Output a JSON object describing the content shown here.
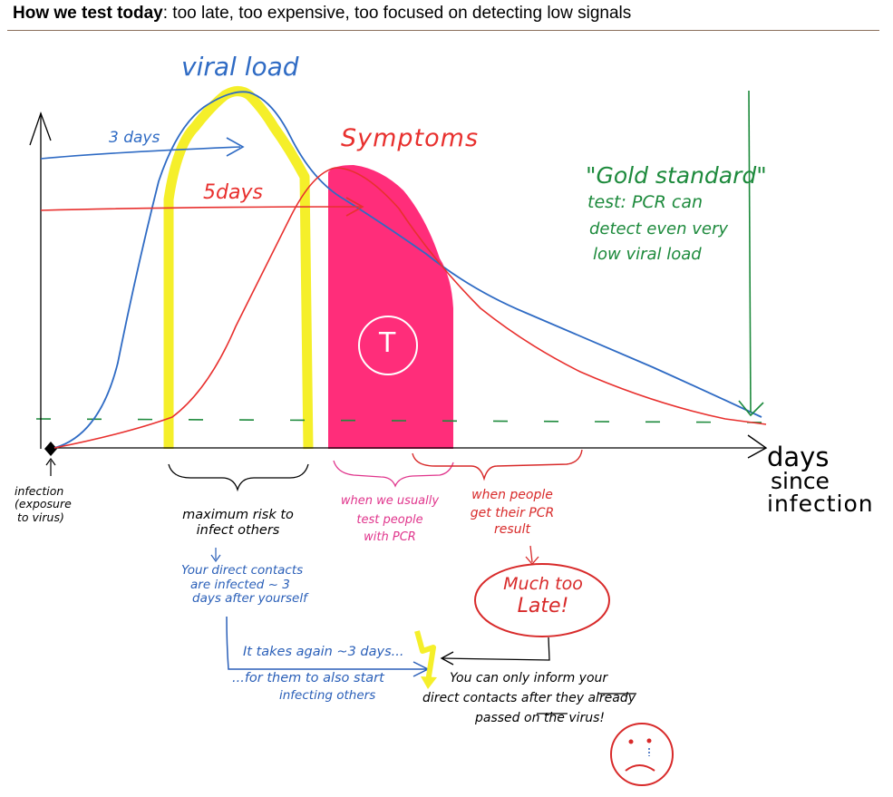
{
  "header": {
    "title_bold": "How we test today",
    "title_rest": ": too late, too expensive, too focused on detecting low signals"
  },
  "colors": {
    "viral_load": "#2f6bc4",
    "symptoms": "#e8302e",
    "infectious_band": "#f5ef2a",
    "testing_window": "#ff2d7a",
    "gold_standard": "#1d8a3c",
    "annotation_blue": "#2a5fb8",
    "annotation_red": "#d82a2a",
    "annotation_pink": "#e0358c",
    "axis": "#000000"
  },
  "labels": {
    "viral_load": "viral load",
    "three_days": "3 days",
    "five_days": "5days",
    "symptoms": "Symptoms",
    "test_marker": "T",
    "days_axis": [
      "days",
      "since",
      "infection"
    ],
    "gold_standard": [
      "\"Gold standard\"",
      "test: PCR can",
      "detect even very",
      "low viral load"
    ],
    "infection_start": [
      "infection",
      "(exposure",
      "to virus)"
    ],
    "max_risk": [
      "maximum risk to",
      "infect others"
    ],
    "contacts": [
      "Your direct contacts",
      "are infected ~ 3",
      "days after yourself"
    ],
    "takes_again": "It takes again ~3 days...",
    "for_them": "...for them to also start",
    "infecting_others": "infecting others",
    "when_test": [
      "when we usually",
      "test people",
      "with PCR"
    ],
    "when_result": [
      "when people",
      "get their PCR",
      "result"
    ],
    "much_too_late": [
      "Much too",
      "Late!"
    ],
    "you_can_inform": [
      "You can only inform your",
      "direct contacts after they already",
      "passed on the virus!"
    ]
  },
  "arrows": {
    "three_days": "↓",
    "result_down": "↓"
  }
}
